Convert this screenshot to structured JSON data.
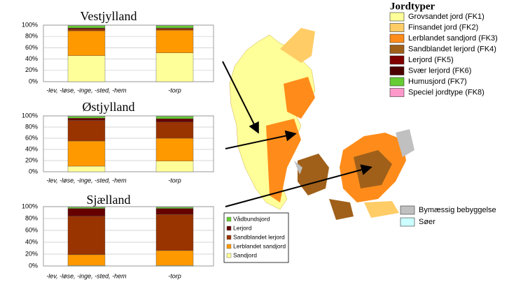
{
  "chart_data": [
    {
      "type": "stacked-bar",
      "title": "Vestjylland",
      "categories": [
        "-lev, -løse, -inge, -sted, -hem",
        "-torp"
      ],
      "series": [
        {
          "color": "#ffff99",
          "values": [
            46,
            51
          ]
        },
        {
          "color": "#ff9900",
          "values": [
            44,
            40
          ]
        },
        {
          "color": "#993300",
          "values": [
            3,
            3
          ]
        },
        {
          "color": "#660000",
          "values": [
            2,
            1
          ]
        },
        {
          "color": "#66cc33",
          "values": [
            4,
            4
          ]
        }
      ],
      "ylim": [
        0,
        100
      ],
      "yticks": [
        {
          "value": 0,
          "label": "0%"
        },
        {
          "value": 20,
          "label": "20%"
        },
        {
          "value": 40,
          "label": "40%"
        },
        {
          "value": 60,
          "label": "60%"
        },
        {
          "value": 80,
          "label": "80%"
        },
        {
          "value": 100,
          "label": "100%"
        }
      ],
      "grid": true
    },
    {
      "type": "stacked-bar",
      "title": "Østjylland",
      "categories": [
        "-lev, -løse, -inge, -sted, -hem",
        "-torp"
      ],
      "series": [
        {
          "color": "#ffff99",
          "values": [
            10,
            19
          ]
        },
        {
          "color": "#ff9900",
          "values": [
            45,
            41
          ]
        },
        {
          "color": "#993300",
          "values": [
            37,
            29
          ]
        },
        {
          "color": "#660000",
          "values": [
            4,
            6
          ]
        },
        {
          "color": "#66cc33",
          "values": [
            3,
            4
          ]
        }
      ],
      "ylim": [
        0,
        100
      ],
      "yticks": [
        {
          "value": 0,
          "label": "0%"
        },
        {
          "value": 20,
          "label": "20%"
        },
        {
          "value": 40,
          "label": "40%"
        },
        {
          "value": 60,
          "label": "60%"
        },
        {
          "value": 80,
          "label": "80%"
        },
        {
          "value": 100,
          "label": "100%"
        }
      ],
      "grid": true
    },
    {
      "type": "stacked-bar",
      "title": "Sjælland",
      "categories": [
        "-lev, -løse, -inge, -sted, -hem",
        "-torp"
      ],
      "series": [
        {
          "name": "Sandjord",
          "color": "#ffff99",
          "values": [
            1,
            1
          ]
        },
        {
          "name": "Lerblandet sandjord",
          "color": "#ff9900",
          "values": [
            18,
            25
          ]
        },
        {
          "name": "Sandblandet lerjord",
          "color": "#993300",
          "values": [
            65,
            61
          ]
        },
        {
          "name": "Lerjord",
          "color": "#660000",
          "values": [
            13,
            10
          ]
        },
        {
          "name": "Vådbundsjord",
          "color": "#66cc33",
          "values": [
            2,
            2
          ]
        }
      ],
      "ylim": [
        0,
        100
      ],
      "yticks": [
        {
          "value": 0,
          "label": "0%"
        },
        {
          "value": 20,
          "label": "20%"
        },
        {
          "value": 40,
          "label": "40%"
        },
        {
          "value": 60,
          "label": "60%"
        },
        {
          "value": 80,
          "label": "80%"
        },
        {
          "value": 100,
          "label": "100%"
        }
      ],
      "grid": true,
      "legend": true
    }
  ],
  "map_legend": {
    "title": "Jordtyper",
    "items": [
      {
        "label": "Grovsandet jord (FK1)",
        "color": "#ffff99"
      },
      {
        "label": "Finsandet jord (FK2)",
        "color": "#ffcc66"
      },
      {
        "label": "Lerblandet sandjord (FK3)",
        "color": "#ff8c1a"
      },
      {
        "label": "Sandblandet lerjord (FK4)",
        "color": "#a0601a"
      },
      {
        "label": "Lerjord (FK5)",
        "color": "#800000"
      },
      {
        "label": "Svær lerjord (FK6)",
        "color": "#4d0000"
      },
      {
        "label": "Humusjord (FK7)",
        "color": "#66cc33"
      },
      {
        "label": "Speciel jordtype (FK8)",
        "color": "#ff99cc"
      }
    ],
    "extra_items": [
      {
        "label": "Bymæssig bebyggelse",
        "color": "#c0c0c0"
      },
      {
        "label": "Søer",
        "color": "#ccffff"
      }
    ]
  }
}
